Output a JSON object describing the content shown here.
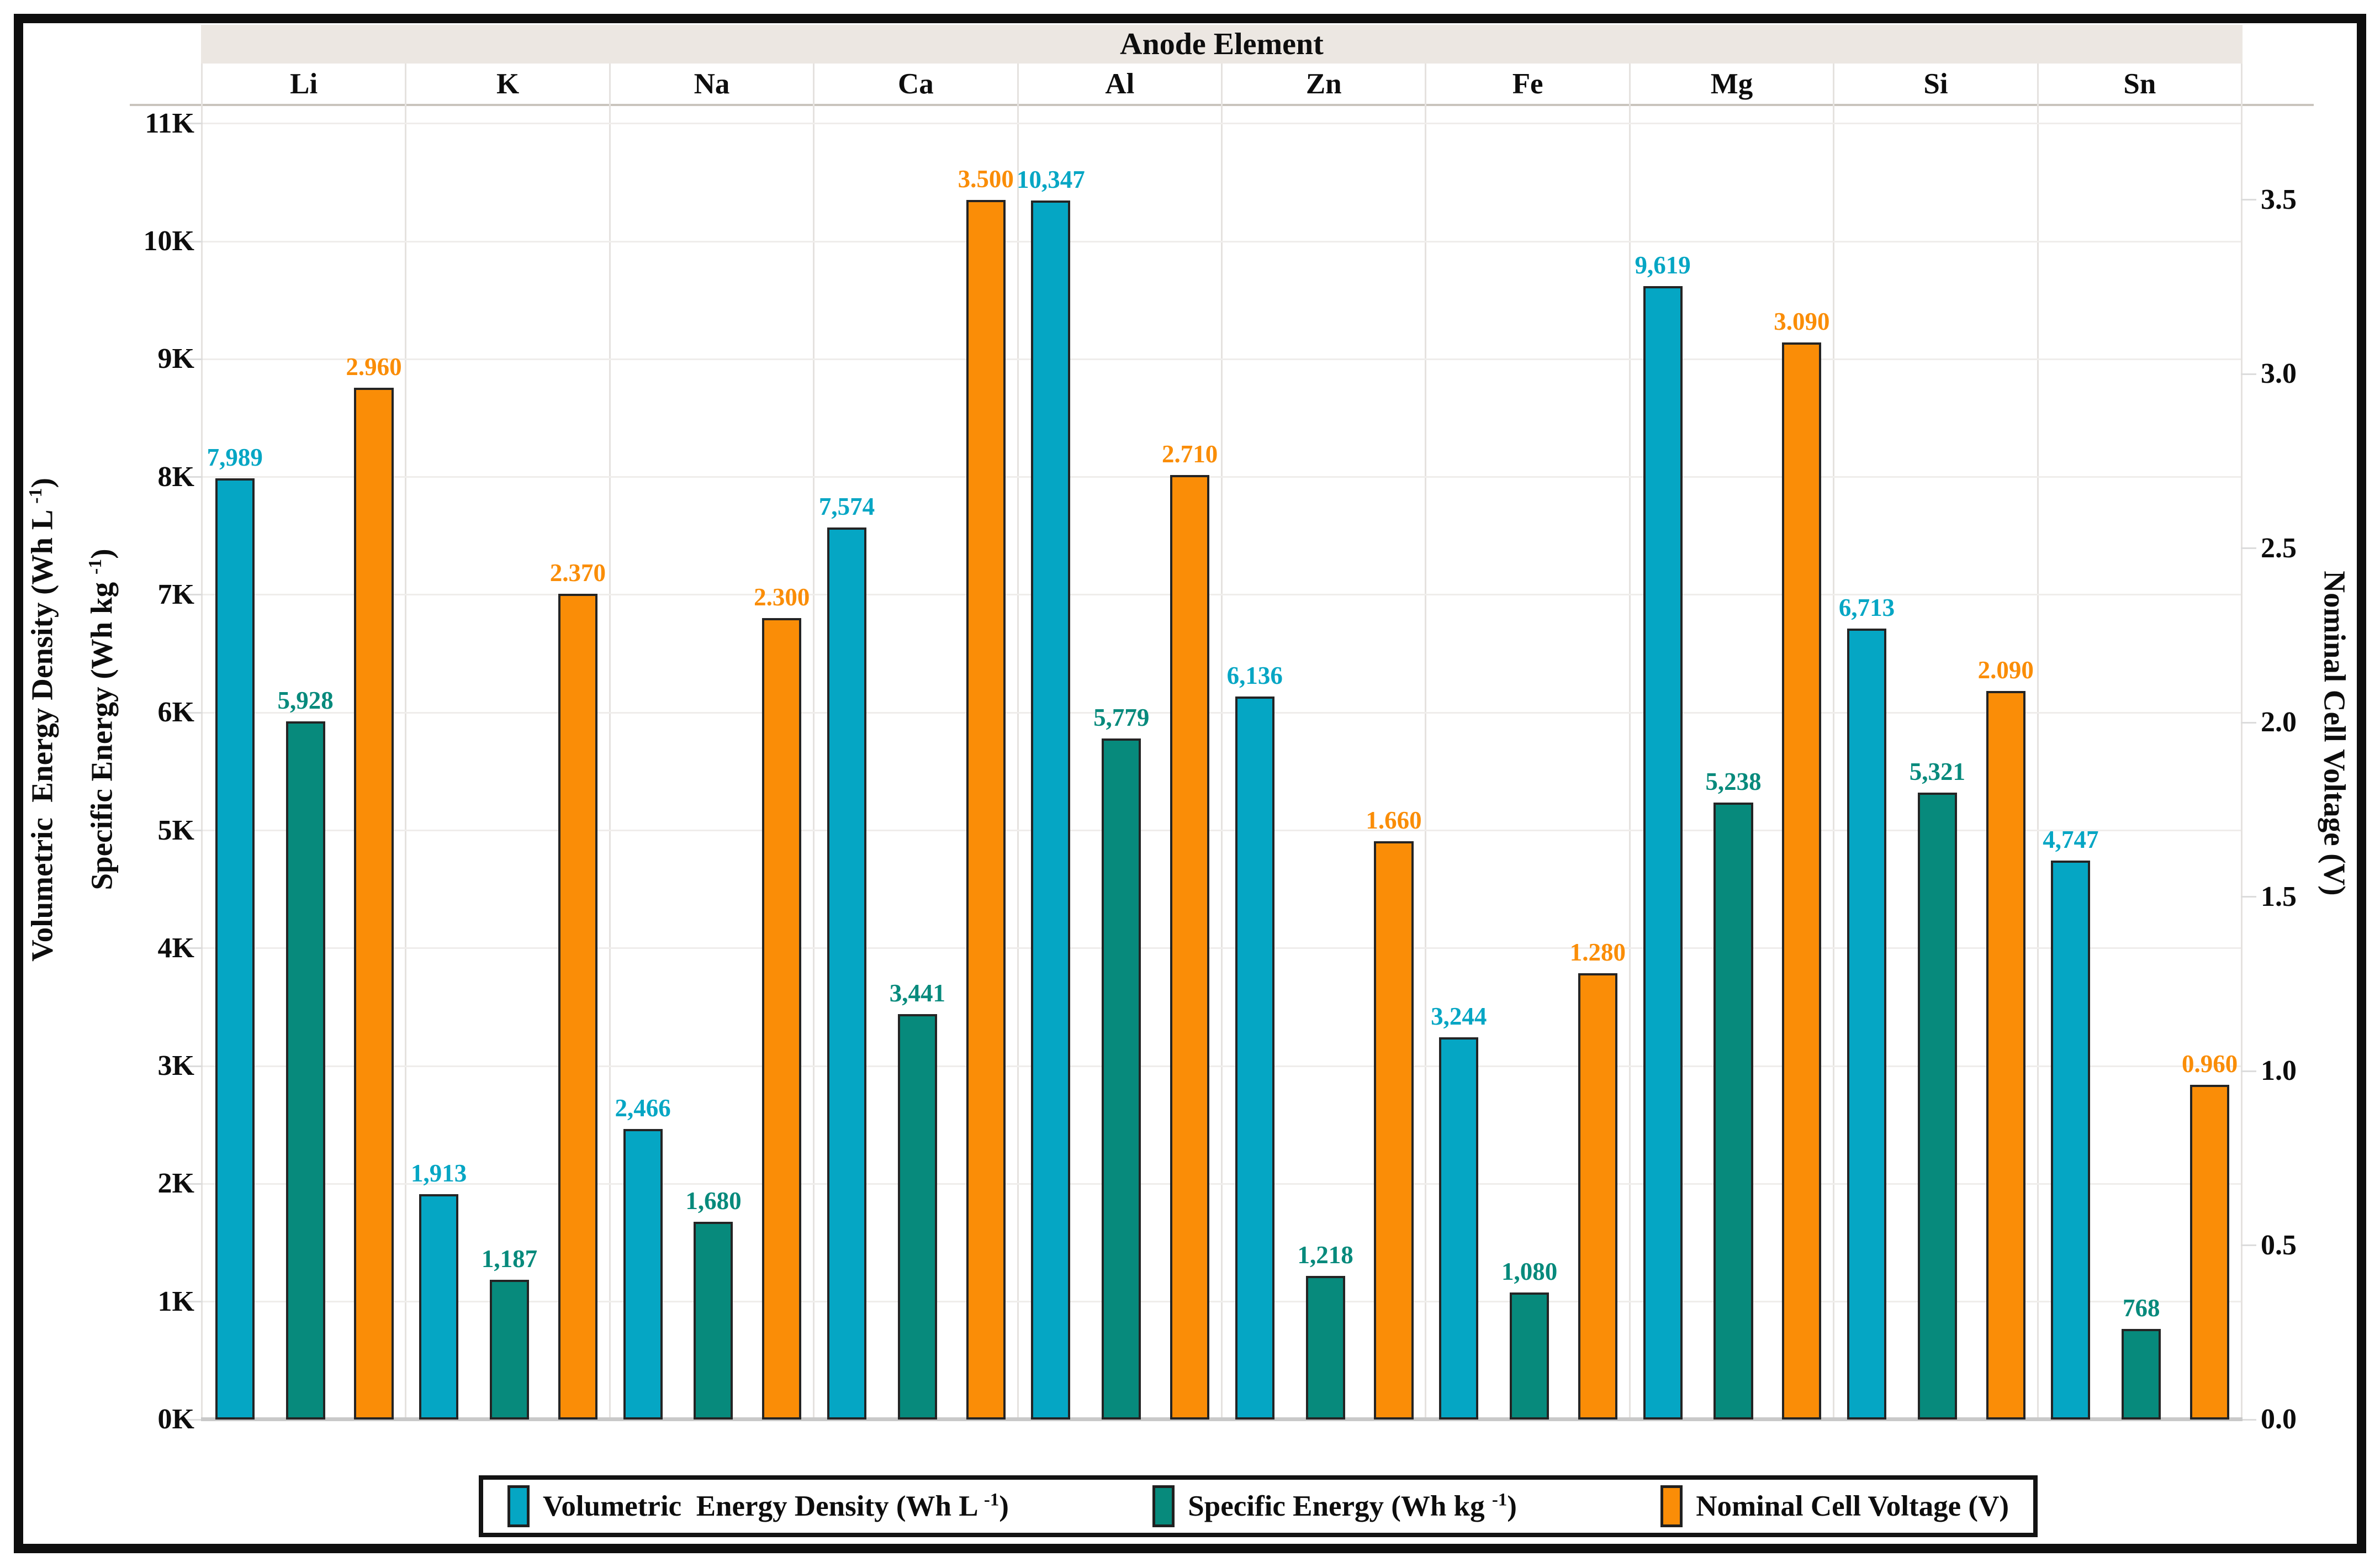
{
  "title": "Anode Element",
  "left_axis": {
    "title_line1": {
      "prefix": "Volumetric  Energy Density (Wh L ",
      "sup": "-1",
      "suffix": ")"
    },
    "title_line2": {
      "prefix": "Specific Energy (Wh kg ",
      "sup": "-1",
      "suffix": ")"
    },
    "ticks": [
      "0K",
      "1K",
      "2K",
      "3K",
      "4K",
      "5K",
      "6K",
      "7K",
      "8K",
      "9K",
      "10K",
      "11K"
    ]
  },
  "right_axis": {
    "title": "Nominal Cell Voltage (V)",
    "ticks": [
      "0.0",
      "0.5",
      "1.0",
      "1.5",
      "2.0",
      "2.5",
      "3.0",
      "3.5"
    ]
  },
  "chart_data": {
    "type": "bar",
    "title": "Anode Element",
    "xlabel": "Anode Element",
    "ylabel_left": "Volumetric Energy Density (Wh L -1) / Specific Energy (Wh kg -1)",
    "ylabel_right": "Nominal Cell Voltage (V)",
    "left_ylim": [
      0,
      11000
    ],
    "right_ylim": [
      0,
      3.5
    ],
    "grid": "horizontal, every 1K",
    "legend_position": "bottom",
    "categories": [
      "Li",
      "K",
      "Na",
      "Ca",
      "Al",
      "Zn",
      "Fe",
      "Mg",
      "Si",
      "Sn"
    ],
    "series": [
      {
        "key": "volumetric",
        "name": "Volumetric Energy Density (Wh L -1)",
        "axis": "left",
        "color": "#05a6c4",
        "values": [
          7989,
          1913,
          2466,
          7574,
          10347,
          6136,
          3244,
          9619,
          6713,
          4747
        ],
        "value_labels": [
          "7,989",
          "1,913",
          "2,466",
          "7,574",
          "10,347",
          "6,136",
          "3,244",
          "9,619",
          "6,713",
          "4,747"
        ],
        "legend_label": {
          "prefix": "Volumetric  Energy Density (Wh L ",
          "sup": "-1",
          "suffix": ")"
        }
      },
      {
        "key": "specific",
        "name": "Specific Energy (Wh kg -1)",
        "axis": "left",
        "color": "#078a7c",
        "values": [
          5928,
          1187,
          1680,
          3441,
          5779,
          1218,
          1080,
          5238,
          5321,
          768
        ],
        "value_labels": [
          "5,928",
          "1,187",
          "1,680",
          "3,441",
          "5,779",
          "1,218",
          "1,080",
          "5,238",
          "5,321",
          "768"
        ],
        "legend_label": {
          "prefix": "Specific Energy (Wh kg ",
          "sup": "-1",
          "suffix": ")"
        }
      },
      {
        "key": "voltage",
        "name": "Nominal Cell Voltage (V)",
        "axis": "right",
        "color": "#fa8d07",
        "values": [
          2.96,
          2.37,
          2.3,
          3.5,
          2.71,
          1.66,
          1.28,
          3.09,
          2.09,
          0.96
        ],
        "value_labels": [
          "2.960",
          "2.370",
          "2.300",
          "3.500",
          "2.710",
          "1.660",
          "1.280",
          "3.090",
          "2.090",
          "0.960"
        ],
        "legend_label": {
          "prefix": "Nominal Cell Voltage (V)",
          "sup": "",
          "suffix": ""
        }
      }
    ]
  }
}
